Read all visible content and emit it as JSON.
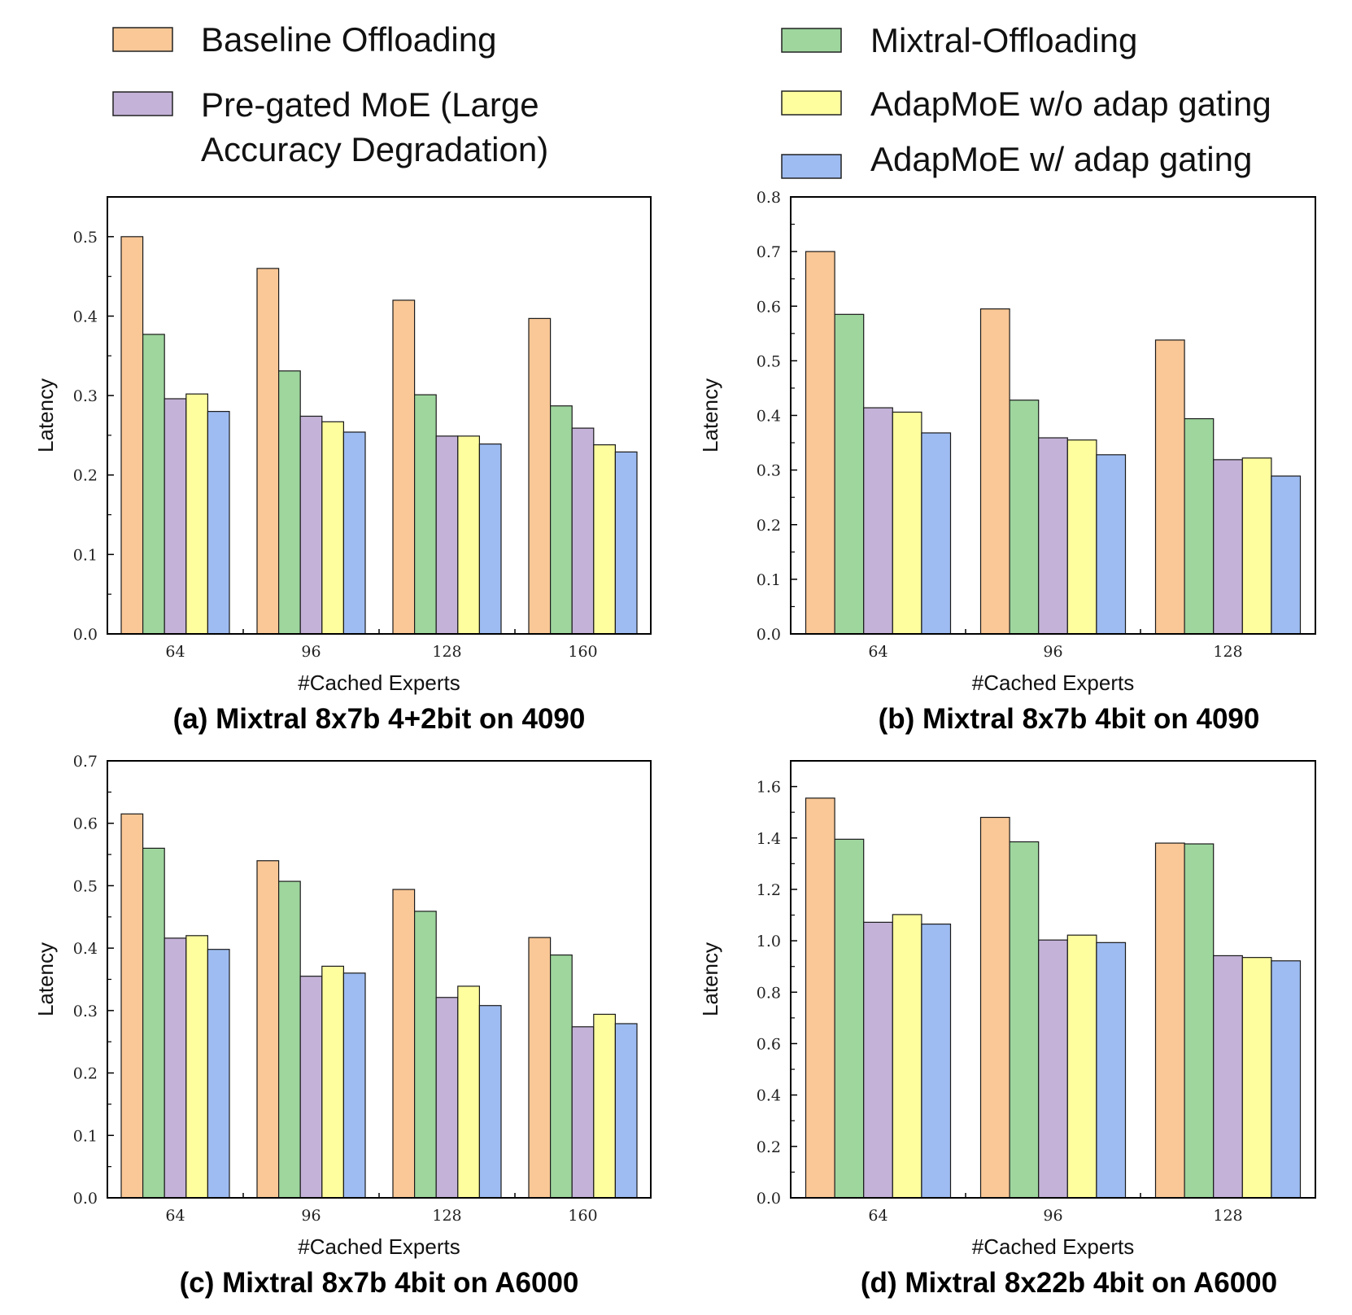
{
  "legend": [
    {
      "key": "baseline",
      "label": "Baseline Offloading",
      "color": "#FAC896"
    },
    {
      "key": "pregated",
      "label": "Pre-gated MoE (Large",
      "label_line2": "Accuracy Degradation)",
      "color": "#C4B2D8"
    },
    {
      "key": "mixtral",
      "label": "Mixtral-Offloading",
      "color": "#9ED69E"
    },
    {
      "key": "adap_wo",
      "label": "AdapMoE w/o adap gating",
      "color": "#FEFE9E"
    },
    {
      "key": "adap_w",
      "label": "AdapMoE w/ adap gating",
      "color": "#9EBCF2"
    }
  ],
  "series_order": [
    "baseline",
    "mixtral",
    "pregated",
    "adap_wo",
    "adap_w"
  ],
  "chart_data": [
    {
      "id": "a",
      "type": "bar",
      "caption": "(a) Mixtral 8x7b 4+2bit on 4090",
      "xlabel": "#Cached Experts",
      "ylabel": "Latency",
      "ylim": [
        0,
        0.55
      ],
      "yticks": [
        0.0,
        0.1,
        0.2,
        0.3,
        0.4,
        0.5
      ],
      "ytick_labels": [
        "0.0",
        "0.1",
        "0.2",
        "0.3",
        "0.4",
        "0.5"
      ],
      "categories": [
        "64",
        "96",
        "128",
        "160"
      ],
      "series": [
        {
          "name": "Baseline Offloading",
          "key": "baseline",
          "values": [
            0.5,
            0.46,
            0.42,
            0.397
          ]
        },
        {
          "name": "Mixtral-Offloading",
          "key": "mixtral",
          "values": [
            0.377,
            0.331,
            0.301,
            0.287
          ]
        },
        {
          "name": "Pre-gated MoE",
          "key": "pregated",
          "values": [
            0.296,
            0.274,
            0.249,
            0.259
          ]
        },
        {
          "name": "AdapMoE w/o adap gating",
          "key": "adap_wo",
          "values": [
            0.302,
            0.267,
            0.249,
            0.238
          ]
        },
        {
          "name": "AdapMoE w/ adap gating",
          "key": "adap_w",
          "values": [
            0.28,
            0.254,
            0.239,
            0.229
          ]
        }
      ]
    },
    {
      "id": "b",
      "type": "bar",
      "caption": "(b) Mixtral 8x7b 4bit on 4090",
      "xlabel": "#Cached Experts",
      "ylabel": "Latency",
      "ylim": [
        0,
        0.8
      ],
      "yticks": [
        0.0,
        0.1,
        0.2,
        0.3,
        0.4,
        0.5,
        0.6,
        0.7,
        0.8
      ],
      "ytick_labels": [
        "0.0",
        "0.1",
        "0.2",
        "0.3",
        "0.4",
        "0.5",
        "0.6",
        "0.7",
        "0.8"
      ],
      "categories": [
        "64",
        "96",
        "128"
      ],
      "series": [
        {
          "name": "Baseline Offloading",
          "key": "baseline",
          "values": [
            0.7,
            0.595,
            0.538
          ]
        },
        {
          "name": "Mixtral-Offloading",
          "key": "mixtral",
          "values": [
            0.585,
            0.428,
            0.394
          ]
        },
        {
          "name": "Pre-gated MoE",
          "key": "pregated",
          "values": [
            0.414,
            0.359,
            0.319
          ]
        },
        {
          "name": "AdapMoE w/o adap gating",
          "key": "adap_wo",
          "values": [
            0.406,
            0.355,
            0.322
          ]
        },
        {
          "name": "AdapMoE w/ adap gating",
          "key": "adap_w",
          "values": [
            0.368,
            0.328,
            0.289
          ]
        }
      ]
    },
    {
      "id": "c",
      "type": "bar",
      "caption": "(c) Mixtral 8x7b 4bit on A6000",
      "xlabel": "#Cached Experts",
      "ylabel": "Latency",
      "ylim": [
        0,
        0.7
      ],
      "yticks": [
        0.0,
        0.1,
        0.2,
        0.3,
        0.4,
        0.5,
        0.6,
        0.7
      ],
      "ytick_labels": [
        "0.0",
        "0.1",
        "0.2",
        "0.3",
        "0.4",
        "0.5",
        "0.6",
        "0.7"
      ],
      "categories": [
        "64",
        "96",
        "128",
        "160"
      ],
      "series": [
        {
          "name": "Baseline Offloading",
          "key": "baseline",
          "values": [
            0.615,
            0.54,
            0.494,
            0.417
          ]
        },
        {
          "name": "Mixtral-Offloading",
          "key": "mixtral",
          "values": [
            0.56,
            0.507,
            0.459,
            0.389
          ]
        },
        {
          "name": "Pre-gated MoE",
          "key": "pregated",
          "values": [
            0.416,
            0.355,
            0.321,
            0.274
          ]
        },
        {
          "name": "AdapMoE w/o adap gating",
          "key": "adap_wo",
          "values": [
            0.42,
            0.371,
            0.339,
            0.294
          ]
        },
        {
          "name": "AdapMoE w/ adap gating",
          "key": "adap_w",
          "values": [
            0.398,
            0.36,
            0.308,
            0.279
          ]
        }
      ]
    },
    {
      "id": "d",
      "type": "bar",
      "caption": "(d) Mixtral 8x22b 4bit on A6000",
      "xlabel": "#Cached Experts",
      "ylabel": "Latency",
      "ylim": [
        0,
        1.7
      ],
      "yticks": [
        0.0,
        0.2,
        0.4,
        0.6,
        0.8,
        1.0,
        1.2,
        1.4,
        1.6
      ],
      "ytick_labels": [
        "0.0",
        "0.2",
        "0.4",
        "0.6",
        "0.8",
        "1.0",
        "1.2",
        "1.4",
        "1.6"
      ],
      "categories": [
        "64",
        "96",
        "128"
      ],
      "series": [
        {
          "name": "Baseline Offloading",
          "key": "baseline",
          "values": [
            1.555,
            1.48,
            1.38
          ]
        },
        {
          "name": "Mixtral-Offloading",
          "key": "mixtral",
          "values": [
            1.395,
            1.385,
            1.377
          ]
        },
        {
          "name": "Pre-gated MoE",
          "key": "pregated",
          "values": [
            1.072,
            1.003,
            0.942
          ]
        },
        {
          "name": "AdapMoE w/o adap gating",
          "key": "adap_wo",
          "values": [
            1.102,
            1.022,
            0.935
          ]
        },
        {
          "name": "AdapMoE w/ adap gating",
          "key": "adap_w",
          "values": [
            1.065,
            0.993,
            0.922
          ]
        }
      ]
    }
  ]
}
